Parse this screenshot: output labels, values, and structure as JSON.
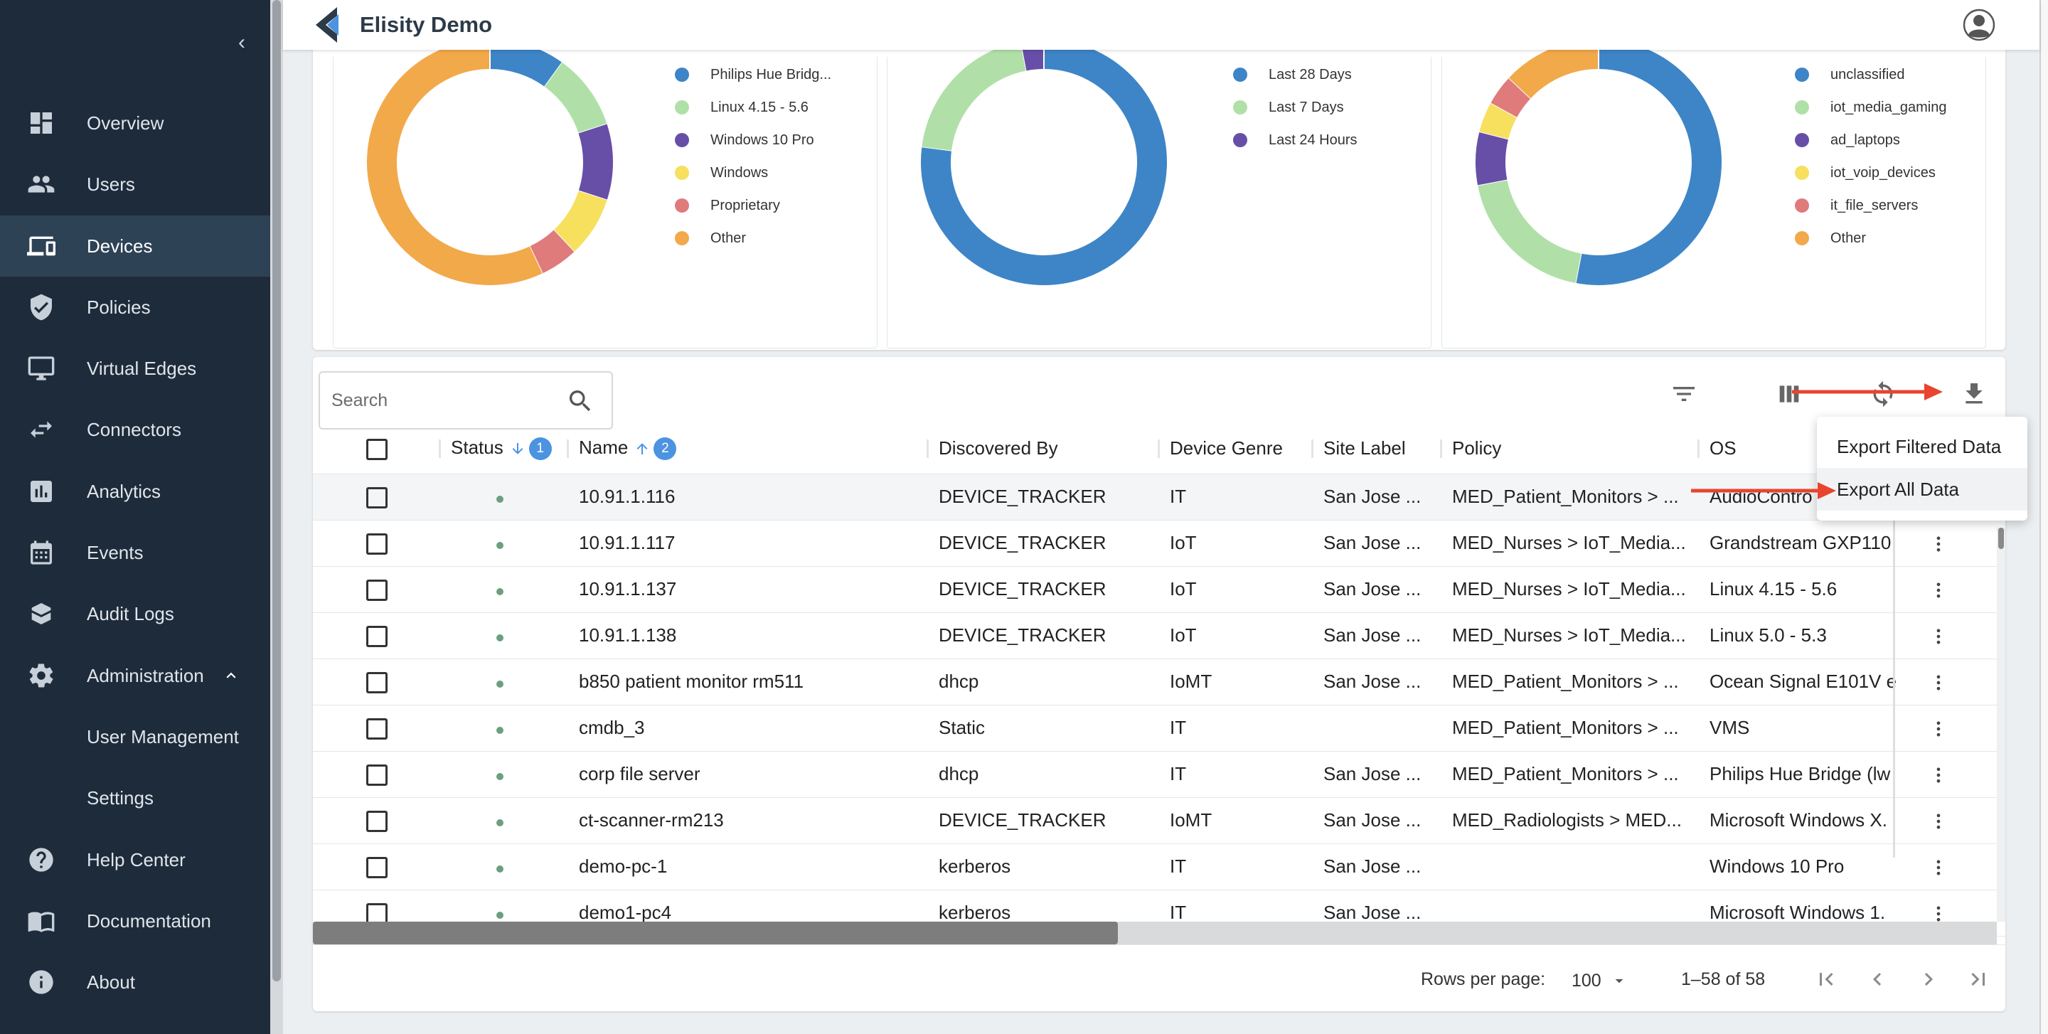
{
  "app": {
    "title": "Elisity Demo"
  },
  "sidebar": {
    "items": [
      {
        "label": "Overview",
        "icon": "dashboard-icon"
      },
      {
        "label": "Users",
        "icon": "users-icon"
      },
      {
        "label": "Devices",
        "icon": "devices-icon",
        "active": true
      },
      {
        "label": "Policies",
        "icon": "shield-check-icon"
      },
      {
        "label": "Virtual Edges",
        "icon": "monitor-icon"
      },
      {
        "label": "Connectors",
        "icon": "swap-arrows-icon"
      },
      {
        "label": "Analytics",
        "icon": "bar-chart-icon"
      },
      {
        "label": "Events",
        "icon": "calendar-icon"
      },
      {
        "label": "Audit Logs",
        "icon": "audit-book-icon"
      },
      {
        "label": "Administration",
        "icon": "gear-icon",
        "expanded": true
      },
      {
        "label": "User Management",
        "sub": true
      },
      {
        "label": "Settings",
        "sub": true
      },
      {
        "label": "Help Center",
        "icon": "help-icon"
      },
      {
        "label": "Documentation",
        "icon": "book-icon"
      },
      {
        "label": "About",
        "icon": "info-icon"
      }
    ]
  },
  "charts": [
    {
      "legend": [
        {
          "label": "Philips Hue Bridg...",
          "color": "#3d85c6"
        },
        {
          "label": "Linux 4.15 - 5.6",
          "color": "#b0e0a8"
        },
        {
          "label": "Windows 10 Pro",
          "color": "#674ea7"
        },
        {
          "label": "Windows",
          "color": "#f6e05e"
        },
        {
          "label": "Proprietary",
          "color": "#e07b7b"
        },
        {
          "label": "Other",
          "color": "#f2a94a"
        }
      ],
      "slices": [
        {
          "label": "Philips Hue Bridg...",
          "value": 10
        },
        {
          "label": "Linux 4.15 - 5.6",
          "value": 10
        },
        {
          "label": "Windows 10 Pro",
          "value": 10
        },
        {
          "label": "Windows",
          "value": 8
        },
        {
          "label": "Proprietary",
          "value": 5
        },
        {
          "label": "Other",
          "value": 57
        }
      ]
    },
    {
      "legend": [
        {
          "label": "Last 28 Days",
          "color": "#3d85c6"
        },
        {
          "label": "Last 7 Days",
          "color": "#b0e0a8"
        },
        {
          "label": "Last 24 Hours",
          "color": "#674ea7"
        }
      ],
      "slices": [
        {
          "label": "Last 28 Days",
          "value": 77
        },
        {
          "label": "Last 7 Days",
          "value": 20
        },
        {
          "label": "Last 24 Hours",
          "value": 3
        }
      ]
    },
    {
      "legend": [
        {
          "label": "unclassified",
          "color": "#3d85c6"
        },
        {
          "label": "iot_media_gaming",
          "color": "#b0e0a8"
        },
        {
          "label": "ad_laptops",
          "color": "#674ea7"
        },
        {
          "label": "iot_voip_devices",
          "color": "#f6e05e"
        },
        {
          "label": "it_file_servers",
          "color": "#e07b7b"
        },
        {
          "label": "Other",
          "color": "#f2a94a"
        }
      ],
      "slices": [
        {
          "label": "unclassified",
          "value": 53
        },
        {
          "label": "iot_media_gaming",
          "value": 19
        },
        {
          "label": "ad_laptops",
          "value": 7
        },
        {
          "label": "iot_voip_devices",
          "value": 4
        },
        {
          "label": "it_file_servers",
          "value": 4
        },
        {
          "label": "Other",
          "value": 13
        }
      ]
    }
  ],
  "search": {
    "placeholder": "Search"
  },
  "table": {
    "columns": [
      "Status",
      "Name",
      "Discovered By",
      "Device Genre",
      "Site Label",
      "Policy",
      "OS"
    ],
    "sort_badges": [
      "1",
      "2"
    ],
    "rows": [
      {
        "name": "10.91.1.116",
        "discovered_by": "DEVICE_TRACKER",
        "genre": "IT",
        "site": "San Jose ...",
        "policy": "MED_Patient_Monitors > ...",
        "os": "AudioContro"
      },
      {
        "name": "10.91.1.117",
        "discovered_by": "DEVICE_TRACKER",
        "genre": "IoT",
        "site": "San Jose ...",
        "policy": "MED_Nurses > IoT_Media...",
        "os": "Grandstream GXP110"
      },
      {
        "name": "10.91.1.137",
        "discovered_by": "DEVICE_TRACKER",
        "genre": "IoT",
        "site": "San Jose ...",
        "policy": "MED_Nurses > IoT_Media...",
        "os": "Linux 4.15 - 5.6"
      },
      {
        "name": "10.91.1.138",
        "discovered_by": "DEVICE_TRACKER",
        "genre": "IoT",
        "site": "San Jose ...",
        "policy": "MED_Nurses > IoT_Media...",
        "os": "Linux 5.0 - 5.3"
      },
      {
        "name": "b850 patient monitor rm511",
        "discovered_by": "dhcp",
        "genre": "IoMT",
        "site": "San Jose ...",
        "policy": "MED_Patient_Monitors > ...",
        "os": "Ocean Signal E101V e"
      },
      {
        "name": "cmdb_3",
        "discovered_by": "Static",
        "genre": "IT",
        "site": "",
        "policy": "MED_Patient_Monitors > ...",
        "os": "VMS"
      },
      {
        "name": "corp file server",
        "discovered_by": "dhcp",
        "genre": "IT",
        "site": "San Jose ...",
        "policy": "MED_Patient_Monitors > ...",
        "os": "Philips Hue Bridge (lw"
      },
      {
        "name": "ct-scanner-rm213",
        "discovered_by": "DEVICE_TRACKER",
        "genre": "IoMT",
        "site": "San Jose ...",
        "policy": "MED_Radiologists > MED...",
        "os": "Microsoft Windows X."
      },
      {
        "name": "demo-pc-1",
        "discovered_by": "kerberos",
        "genre": "IT",
        "site": "San Jose ...",
        "policy": "",
        "os": "Windows 10 Pro"
      },
      {
        "name": "demo1-pc4",
        "discovered_by": "kerberos",
        "genre": "IT",
        "site": "San Jose ...",
        "policy": "",
        "os": "Microsoft Windows 1."
      }
    ]
  },
  "export_menu": {
    "filtered": "Export Filtered Data",
    "all": "Export All Data"
  },
  "pagination": {
    "rows_label": "Rows per page:",
    "rows_value": "100",
    "range": "1–58 of 58"
  },
  "colors": {
    "sidebar_bg": "#1e2b3a",
    "sidebar_active": "#2e4256",
    "accent": "#4c93e0",
    "annotation_arrow": "#e8442e"
  }
}
